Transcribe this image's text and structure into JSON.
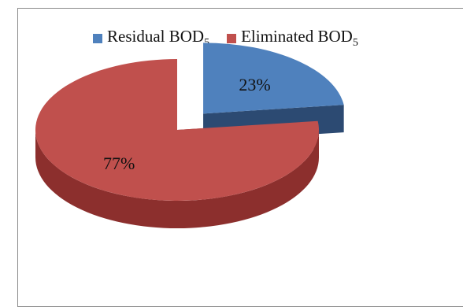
{
  "chart_data": {
    "type": "pie",
    "style": "3d-exploded",
    "title": "",
    "legend_position": "top",
    "slices": [
      {
        "label_main": "Residual BOD",
        "label_sub": "5",
        "value": 23,
        "display": "23%",
        "color": "#4f81bd",
        "side_color": "#2c4a72",
        "exploded": true
      },
      {
        "label_main": "Eliminated BOD",
        "label_sub": "5",
        "value": 77,
        "display": "77%",
        "color": "#c0504d",
        "side_color": "#8c2f2d",
        "exploded": false
      }
    ]
  }
}
